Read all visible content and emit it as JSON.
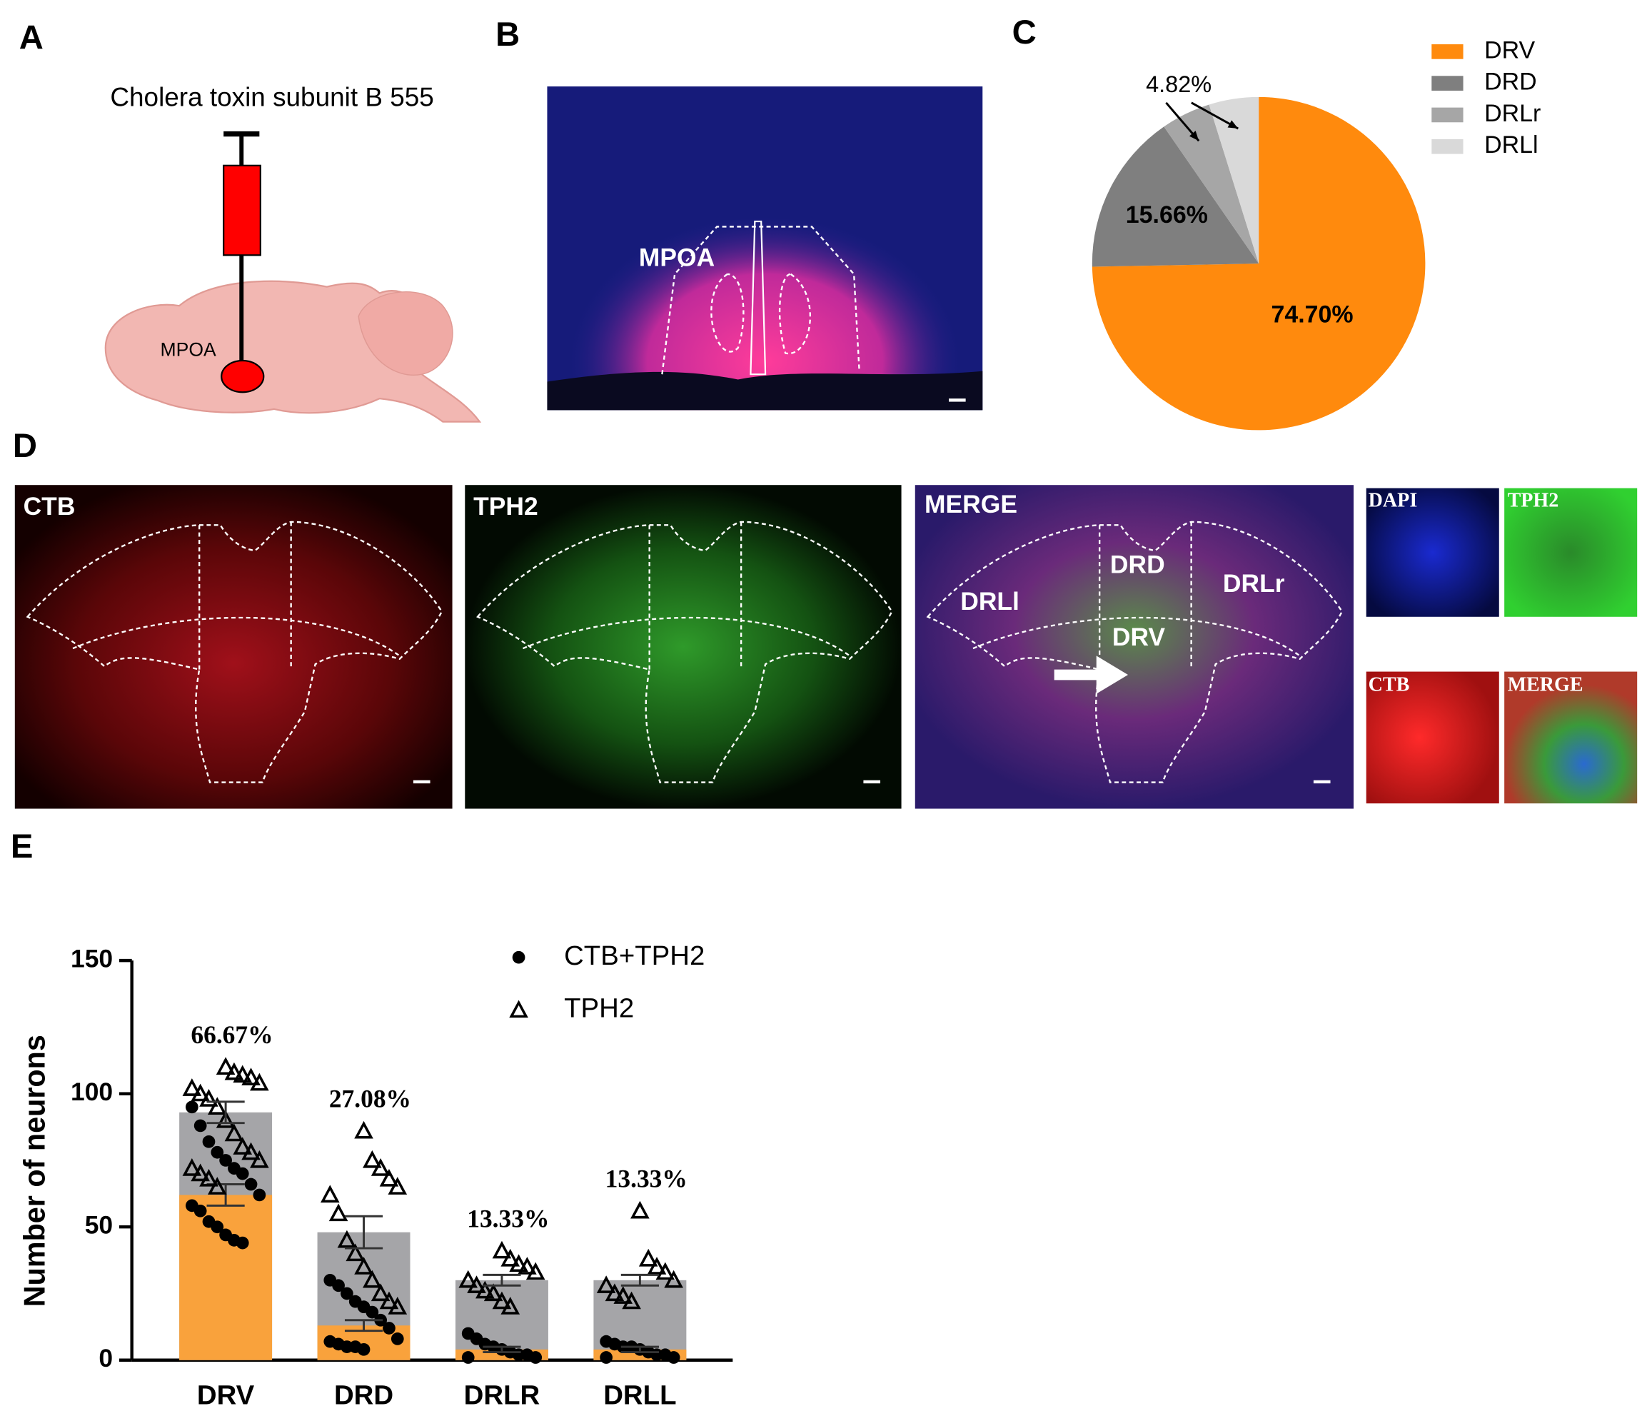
{
  "panels": {
    "labels": [
      "A",
      "B",
      "C",
      "D",
      "E"
    ]
  },
  "panel_a": {
    "title": "Cholera toxin subunit B 555",
    "region": "MPOA"
  },
  "panel_b": {
    "region": "MPOA"
  },
  "panel_d": {
    "channels": [
      "CTB",
      "TPH2",
      "MERGE"
    ],
    "regions": [
      "DRD",
      "DRLr",
      "DRLl",
      "DRV"
    ],
    "insets": [
      "DAPI",
      "TPH2",
      "CTB",
      "MERGE"
    ]
  },
  "chart_data": [
    {
      "type": "pie",
      "categories": [
        "DRV",
        "DRD",
        "DRLr",
        "DRLl"
      ],
      "values": [
        74.7,
        15.66,
        4.82,
        4.82
      ],
      "value_labels": [
        "74.70%",
        "15.66%",
        "4.82%",
        null
      ],
      "colors": [
        "#ff8a0d",
        "#7f7f7f",
        "#a6a6a6",
        "#d9d9d9"
      ],
      "legend": "top-right"
    },
    {
      "type": "bar",
      "categories": [
        "DRV",
        "DRD",
        "DRLR",
        "DRLL"
      ],
      "ylabel": "Number of neurons",
      "ylim": [
        0,
        150
      ],
      "yticks": [
        0,
        50,
        100,
        150
      ],
      "legend": "top",
      "series": [
        {
          "name": "CTB+TPH2",
          "color": "#f9a23c",
          "marker": "circle",
          "values": [
            62,
            13,
            4,
            4
          ],
          "errors": [
            4,
            2,
            1,
            1
          ],
          "points": [
            [
              95,
              88,
              82,
              78,
              75,
              72,
              70,
              66,
              62,
              58,
              56,
              52,
              50,
              47,
              45,
              44
            ],
            [
              30,
              28,
              25,
              22,
              20,
              18,
              15,
              12,
              8,
              7,
              6,
              5,
              5,
              4
            ],
            [
              10,
              8,
              6,
              5,
              4,
              3,
              2,
              2,
              1,
              1
            ],
            [
              7,
              6,
              5,
              5,
              4,
              3,
              2,
              2,
              1,
              1
            ]
          ]
        },
        {
          "name": "TPH2",
          "color": "#a5a5a8",
          "marker": "triangle",
          "values": [
            93,
            48,
            30,
            30
          ],
          "errors": [
            4,
            6,
            2,
            2
          ],
          "points": [
            [
              110,
              108,
              107,
              106,
              104,
              102,
              100,
              98,
              95,
              90,
              85,
              80,
              78,
              75,
              72,
              70,
              68,
              65
            ],
            [
              86,
              75,
              72,
              68,
              65,
              62,
              55,
              45,
              40,
              35,
              30,
              25,
              22,
              20
            ],
            [
              41,
              38,
              36,
              35,
              33,
              30,
              28,
              26,
              25,
              22,
              20
            ],
            [
              56,
              38,
              35,
              33,
              30,
              28,
              25,
              24,
              22
            ]
          ]
        }
      ],
      "annotations": [
        "66.67%",
        "27.08%",
        "13.33%",
        "13.33%"
      ]
    }
  ]
}
